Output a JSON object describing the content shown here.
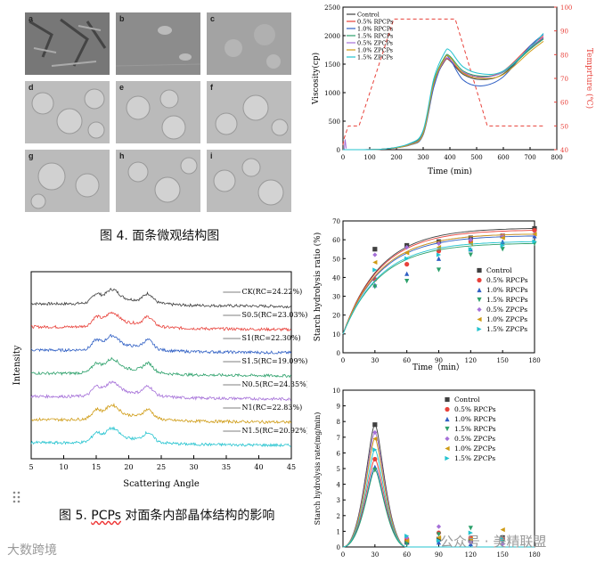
{
  "figure4": {
    "caption": "图 4. 面条微观结构图",
    "panels": [
      "a",
      "b",
      "c",
      "d",
      "e",
      "f",
      "g",
      "h",
      "i"
    ]
  },
  "figure5": {
    "caption_prefix": "图 5. ",
    "caption_abbr": "PCPs",
    "caption_rest": " 对面条内部晶体结构的影响"
  },
  "watermarks": {
    "left": "大数跨境",
    "right_prefix": "公众号 · ",
    "right_name": "美精联盟"
  },
  "colors": {
    "control": "#404040",
    "rpcp05": "#e8413a",
    "rpcp10": "#2f5fc4",
    "rpcp15": "#2ca06a",
    "zpcp05": "#a570d8",
    "zpcp10": "#cf9b14",
    "zpcp15": "#23c3cf",
    "temp": "#e8413a"
  },
  "chart_data": [
    {
      "id": "xrd",
      "type": "line",
      "xlabel": "Scattering Angle",
      "ylabel": "Intensity",
      "xlim": [
        5,
        45
      ],
      "xticks": [
        5,
        10,
        15,
        20,
        25,
        30,
        35,
        40,
        45
      ],
      "series": [
        {
          "name": "CK",
          "label": "CK(RC=24.22%)",
          "offset": 6,
          "color": "control"
        },
        {
          "name": "S0.5",
          "label": "S0.5(RC=23.03%)",
          "offset": 5,
          "color": "rpcp05"
        },
        {
          "name": "S1",
          "label": "S1(RC=22.30%)",
          "offset": 4,
          "color": "rpcp10"
        },
        {
          "name": "S1.5",
          "label": "S1.5(RC=19.09%)",
          "offset": 3,
          "color": "rpcp15"
        },
        {
          "name": "N0.5",
          "label": "N0.5(RC=24.35%)",
          "offset": 2,
          "color": "zpcp05"
        },
        {
          "name": "N1",
          "label": "N1(RC=22.83%)",
          "offset": 1,
          "color": "zpcp10"
        },
        {
          "name": "N1.5",
          "label": "N1.5(RC=20.92%)",
          "offset": 0,
          "color": "zpcp15"
        }
      ],
      "peaks": [
        15,
        17,
        18,
        23
      ]
    },
    {
      "id": "rva",
      "type": "line",
      "xlabel": "Time (min)",
      "ylabel": "Viscosity(cp)",
      "y2label": "Temprture (℃)",
      "xlim": [
        0,
        800
      ],
      "ylim": [
        0,
        2500
      ],
      "y2lim": [
        40,
        100
      ],
      "xticks": [
        0,
        100,
        200,
        300,
        400,
        500,
        600,
        700,
        800
      ],
      "yticks": [
        0,
        500,
        1000,
        1500,
        2000,
        2500
      ],
      "y2ticks": [
        40,
        50,
        60,
        70,
        80,
        90,
        100
      ],
      "legend": [
        "Control",
        "0.5% RPCPs",
        "1.0% RPCPs",
        "1.5% RPCPs",
        "0.5% ZPCPs",
        "1.0% ZPCPs",
        "1.5% ZPCPs"
      ],
      "series": [
        {
          "name": "Control",
          "color": "control",
          "x": [
            0,
            150,
            250,
            300,
            340,
            380,
            400,
            450,
            520,
            600,
            700,
            750
          ],
          "y": [
            0,
            10,
            90,
            280,
            1150,
            1550,
            1560,
            1320,
            1230,
            1330,
            1780,
            1960
          ]
        },
        {
          "name": "0.5% RPCPs",
          "color": "rpcp05",
          "x": [
            0,
            150,
            250,
            300,
            340,
            380,
            400,
            450,
            520,
            600,
            700,
            750
          ],
          "y": [
            0,
            10,
            95,
            300,
            1180,
            1560,
            1570,
            1350,
            1280,
            1380,
            1820,
            1990
          ]
        },
        {
          "name": "1.0% RPCPs",
          "color": "rpcp10",
          "x": [
            0,
            150,
            250,
            300,
            340,
            380,
            400,
            450,
            520,
            600,
            700,
            750
          ],
          "y": [
            0,
            10,
            80,
            260,
            1100,
            1600,
            1590,
            1220,
            1120,
            1280,
            1820,
            2020
          ]
        },
        {
          "name": "1.5% RPCPs",
          "color": "rpcp15",
          "x": [
            0,
            150,
            250,
            300,
            340,
            380,
            400,
            450,
            520,
            600,
            700,
            750
          ],
          "y": [
            0,
            10,
            100,
            320,
            1200,
            1620,
            1640,
            1380,
            1290,
            1360,
            1760,
            1940
          ]
        },
        {
          "name": "0.5% ZPCPs",
          "color": "zpcp05",
          "x": [
            0,
            150,
            250,
            300,
            340,
            380,
            400,
            450,
            520,
            600,
            700,
            750
          ],
          "y": [
            0,
            10,
            90,
            290,
            1160,
            1570,
            1580,
            1360,
            1270,
            1370,
            1790,
            1970
          ]
        },
        {
          "name": "1.0% ZPCPs",
          "color": "zpcp10",
          "x": [
            0,
            150,
            250,
            300,
            340,
            380,
            400,
            450,
            520,
            600,
            700,
            750
          ],
          "y": [
            0,
            10,
            85,
            280,
            1170,
            1600,
            1620,
            1340,
            1250,
            1320,
            1720,
            1900
          ]
        },
        {
          "name": "1.5% ZPCPs",
          "color": "zpcp15",
          "x": [
            0,
            150,
            250,
            300,
            340,
            380,
            400,
            450,
            520,
            600,
            700,
            750
          ],
          "y": [
            0,
            10,
            110,
            340,
            1250,
            1700,
            1740,
            1450,
            1330,
            1380,
            1790,
            2040
          ]
        }
      ],
      "temperature": {
        "x": [
          0,
          5,
          20,
          60,
          190,
          290,
          420,
          540,
          660,
          750
        ],
        "y": [
          42,
          45,
          50,
          50,
          95,
          95,
          95,
          50,
          50,
          50
        ]
      }
    },
    {
      "id": "hydrolysis_ratio",
      "type": "scatter",
      "xlabel": "Time（min）",
      "ylabel": "Starch hydrolysis ratio (%)",
      "xlim": [
        0,
        180
      ],
      "ylim": [
        0,
        70
      ],
      "xticks": [
        0,
        30,
        60,
        90,
        120,
        150,
        180
      ],
      "yticks": [
        0,
        10,
        20,
        30,
        40,
        50,
        60,
        70
      ],
      "legend": [
        "Control",
        "0.5% RPCPs",
        "1.0% RPCPs",
        "1.5% RPCPs",
        "0.5% ZPCPs",
        "1.0% ZPCPs",
        "1.5% ZPCPs"
      ],
      "series": [
        {
          "name": "Control",
          "color": "control",
          "marker": "square",
          "x": [
            0,
            30,
            60,
            90,
            120,
            150,
            180
          ],
          "y": [
            10,
            55,
            57,
            59,
            61,
            62,
            66
          ]
        },
        {
          "name": "0.5% RPCPs",
          "color": "rpcp05",
          "marker": "circle",
          "x": [
            0,
            30,
            60,
            90,
            120,
            150,
            180
          ],
          "y": [
            10,
            39,
            47,
            54,
            59,
            62,
            65
          ]
        },
        {
          "name": "1.0% RPCPs",
          "color": "rpcp10",
          "marker": "triangle",
          "x": [
            0,
            30,
            60,
            90,
            120,
            150,
            180
          ],
          "y": [
            10,
            36,
            42,
            50,
            55,
            59,
            62
          ]
        },
        {
          "name": "1.5% RPCPs",
          "color": "rpcp15",
          "marker": "triangle-down",
          "x": [
            0,
            30,
            60,
            90,
            120,
            150,
            180
          ],
          "y": [
            10,
            35,
            38,
            44,
            52,
            55,
            58
          ]
        },
        {
          "name": "0.5% ZPCPs",
          "color": "zpcp05",
          "marker": "diamond",
          "x": [
            0,
            30,
            60,
            90,
            120,
            150,
            180
          ],
          "y": [
            10,
            52,
            56,
            58,
            60,
            62,
            63
          ]
        },
        {
          "name": "1.0% ZPCPs",
          "color": "zpcp10",
          "marker": "triangle-left",
          "x": [
            0,
            30,
            60,
            90,
            120,
            150,
            180
          ],
          "y": [
            10,
            48,
            53,
            56,
            58,
            61,
            63
          ]
        },
        {
          "name": "1.5% ZPCPs",
          "color": "zpcp15",
          "marker": "triangle-right",
          "x": [
            0,
            30,
            60,
            90,
            120,
            150,
            180
          ],
          "y": [
            10,
            44,
            50,
            52,
            55,
            57,
            59
          ]
        }
      ]
    },
    {
      "id": "hydrolysis_rate",
      "type": "line",
      "xlabel": "",
      "ylabel": "Starch hydrolysis rate(mg/min)",
      "xlim": [
        0,
        180
      ],
      "ylim": [
        0,
        10
      ],
      "xticks": [
        0,
        30,
        60,
        90,
        120,
        150,
        180
      ],
      "yticks": [
        0,
        1,
        2,
        3,
        4,
        5,
        6,
        7,
        8,
        9,
        10
      ],
      "legend": [
        "Control",
        "0.5% RPCPs",
        "1.0% RPCPs",
        "1.5% RPCPs",
        "0.5% ZPCPs",
        "1.0% ZPCPs",
        "1.5% ZPCPs"
      ],
      "series": [
        {
          "name": "Control",
          "color": "control",
          "marker": "square",
          "peak": 7.8,
          "x": [
            60,
            90,
            120,
            150
          ],
          "y": [
            0.3,
            0.5,
            0.4,
            0.6
          ]
        },
        {
          "name": "0.5% RPCPs",
          "color": "rpcp05",
          "marker": "circle",
          "peak": 5.6,
          "x": [
            60,
            90,
            120,
            150
          ],
          "y": [
            0.5,
            0.9,
            0.6,
            0.5
          ]
        },
        {
          "name": "1.0% RPCPs",
          "color": "rpcp10",
          "marker": "triangle",
          "peak": 5.1,
          "x": [
            60,
            90,
            120,
            150
          ],
          "y": [
            0.3,
            0.3,
            0.2,
            0.3
          ]
        },
        {
          "name": "1.5% RPCPs",
          "color": "rpcp15",
          "marker": "triangle-down",
          "peak": 4.9,
          "x": [
            60,
            90,
            120,
            150
          ],
          "y": [
            0.2,
            0.8,
            1.2,
            0.3
          ]
        },
        {
          "name": "0.5% ZPCPs",
          "color": "zpcp05",
          "marker": "diamond",
          "peak": 7.3,
          "x": [
            60,
            90,
            120,
            150
          ],
          "y": [
            0.6,
            1.3,
            0.3,
            0.2
          ]
        },
        {
          "name": "1.0% ZPCPs",
          "color": "zpcp10",
          "marker": "triangle-left",
          "peak": 6.9,
          "x": [
            60,
            90,
            120,
            150
          ],
          "y": [
            0.4,
            0.6,
            0.5,
            1.1
          ]
        },
        {
          "name": "1.5% ZPCPs",
          "color": "zpcp15",
          "marker": "triangle-right",
          "peak": 6.2,
          "x": [
            60,
            90,
            120,
            150
          ],
          "y": [
            0.7,
            0.4,
            0.9,
            0.5
          ]
        }
      ]
    }
  ]
}
